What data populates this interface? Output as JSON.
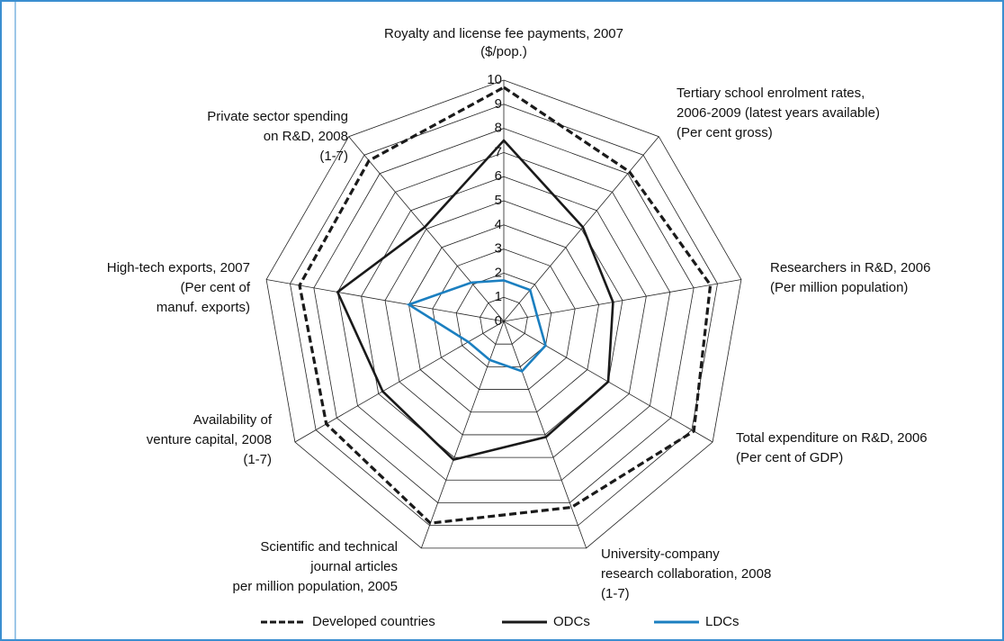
{
  "chart_data": {
    "type": "radar",
    "categories": [
      [
        "Royalty and license fee payments, 2007",
        "($/pop.)"
      ],
      [
        "Tertiary school enrolment rates,",
        "2006-2009 (latest years available)",
        "(Per cent gross)"
      ],
      [
        "Researchers in R&D, 2006",
        "(Per million population)"
      ],
      [
        "Total expenditure on R&D, 2006",
        "(Per cent of GDP)"
      ],
      [
        "University-company",
        "research collaboration, 2008",
        "(1-7)"
      ],
      [
        "Scientific and technical",
        "journal articles",
        "per million population, 2005"
      ],
      [
        "Availability of",
        "venture capital, 2008",
        "(1-7)"
      ],
      [
        "High-tech exports, 2007",
        "(Per cent of",
        "manuf. exports)"
      ],
      [
        "Private sector spending",
        "on R&D, 2008",
        "(1-7)"
      ]
    ],
    "series": [
      {
        "name": "Developed countries",
        "color": "#1a1a1a",
        "dashed": true,
        "values": [
          9.7,
          8.1,
          8.7,
          9.1,
          8.2,
          8.9,
          8.5,
          8.6,
          8.7
        ]
      },
      {
        "name": "ODCs",
        "color": "#1a1a1a",
        "dashed": false,
        "values": [
          7.5,
          5.1,
          4.6,
          5.0,
          5.1,
          6.1,
          5.8,
          7.0,
          5.1
        ]
      },
      {
        "name": "LDCs",
        "color": "#1b7fc0",
        "dashed": false,
        "values": [
          1.7,
          1.7,
          1.4,
          2.0,
          2.2,
          1.7,
          1.7,
          4.0,
          2.1
        ]
      }
    ],
    "rlim": [
      0,
      10
    ],
    "rticks": [
      0,
      1,
      2,
      3,
      4,
      5,
      6,
      7,
      8,
      9,
      10
    ],
    "grid": true,
    "legend": "bottom"
  }
}
